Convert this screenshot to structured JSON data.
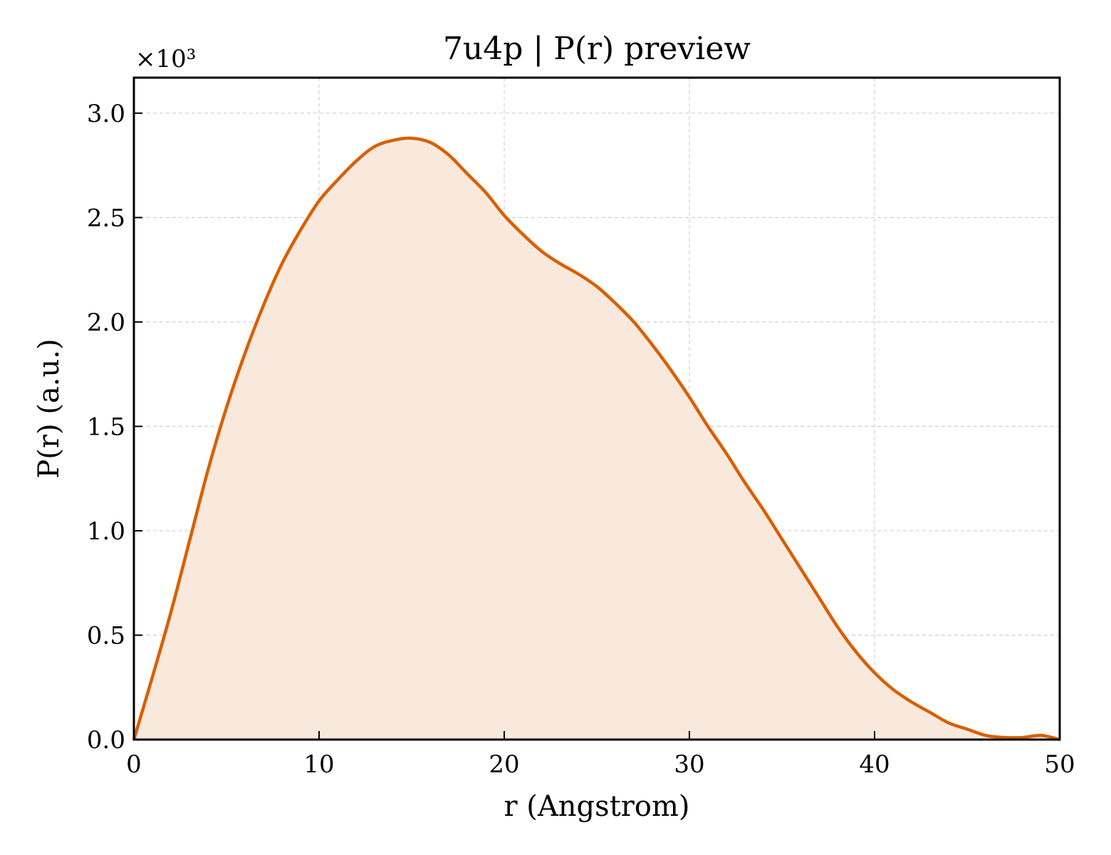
{
  "chart_data": {
    "type": "area",
    "title": "7u4p | P(r) preview",
    "xlabel": "r (Angstrom)",
    "ylabel": "P(r) (a.u.)",
    "y_multiplier": "×10³",
    "xlim": [
      0,
      50
    ],
    "ylim": [
      0,
      3.17
    ],
    "y_scale_factor": 1000,
    "x_ticks": [
      0,
      10,
      20,
      30,
      40,
      50
    ],
    "x_tick_labels": [
      "0",
      "10",
      "20",
      "30",
      "40",
      "50"
    ],
    "y_ticks": [
      0.0,
      0.5,
      1.0,
      1.5,
      2.0,
      2.5,
      3.0
    ],
    "y_tick_labels": [
      "0.0",
      "0.5",
      "1.0",
      "1.5",
      "2.0",
      "2.5",
      "3.0"
    ],
    "grid": true,
    "tick_direction": "in",
    "line_color": "#d95f02",
    "fill_color": "#f9e9dd",
    "series": [
      {
        "x": [
          0,
          1,
          2,
          3,
          4,
          5,
          6,
          7,
          8,
          9,
          10,
          11,
          12,
          13,
          14,
          15,
          16,
          17,
          18,
          19,
          20,
          21,
          22,
          23,
          24,
          25,
          26,
          27,
          28,
          29,
          30,
          31,
          32,
          33,
          34,
          35,
          36,
          37,
          38,
          39,
          40,
          41,
          42,
          43,
          44,
          45,
          46,
          47,
          48,
          49,
          50
        ],
        "y": [
          0.0,
          0.3,
          0.61,
          0.95,
          1.29,
          1.59,
          1.85,
          2.08,
          2.28,
          2.44,
          2.58,
          2.68,
          2.77,
          2.84,
          2.87,
          2.88,
          2.86,
          2.8,
          2.71,
          2.62,
          2.51,
          2.42,
          2.34,
          2.28,
          2.23,
          2.17,
          2.09,
          2.0,
          1.89,
          1.77,
          1.64,
          1.5,
          1.37,
          1.23,
          1.1,
          0.96,
          0.82,
          0.68,
          0.54,
          0.42,
          0.32,
          0.24,
          0.18,
          0.13,
          0.08,
          0.05,
          0.02,
          0.01,
          0.01,
          0.02,
          0.0
        ]
      }
    ]
  }
}
